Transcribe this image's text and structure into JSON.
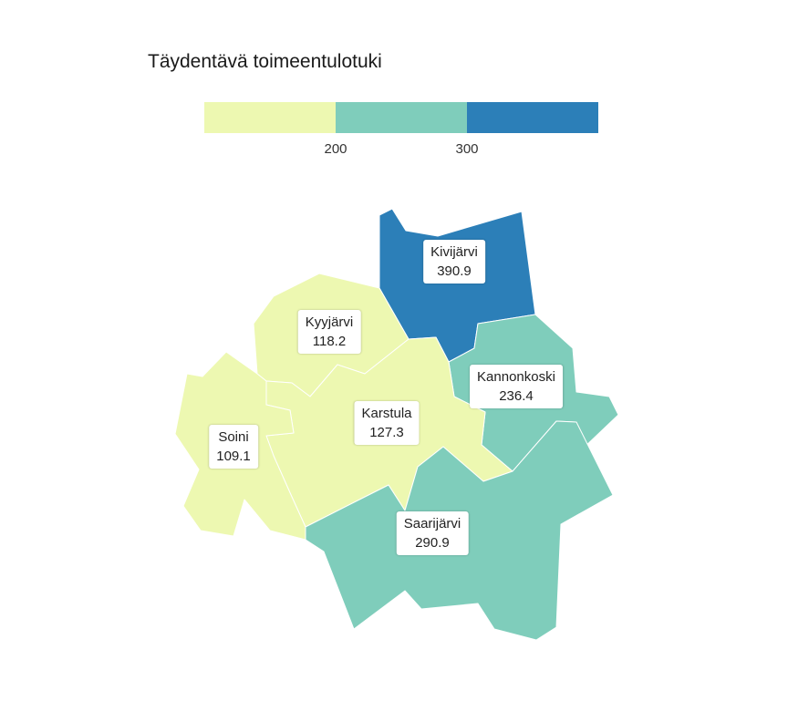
{
  "title": "Täydentävä toimeentulotuki",
  "legend": {
    "ticks": [
      "200",
      "300"
    ],
    "bins": [
      {
        "color": "#edf8b1"
      },
      {
        "color": "#7fcdbb"
      },
      {
        "color": "#2c7fb8"
      }
    ]
  },
  "municipalities": [
    {
      "key": "kivijarvi",
      "name": "Kivijärvi",
      "value": "390.9",
      "color": "#2c7fb8"
    },
    {
      "key": "kyyjarvi",
      "name": "Kyyjärvi",
      "value": "118.2",
      "color": "#edf8b1"
    },
    {
      "key": "kannonkoski",
      "name": "Kannonkoski",
      "value": "236.4",
      "color": "#7fcdbb"
    },
    {
      "key": "karstula",
      "name": "Karstula",
      "value": "127.3",
      "color": "#edf8b1"
    },
    {
      "key": "soini",
      "name": "Soini",
      "value": "109.1",
      "color": "#edf8b1"
    },
    {
      "key": "saarijarvi",
      "name": "Saarijärvi",
      "value": "290.9",
      "color": "#7fcdbb"
    }
  ]
}
